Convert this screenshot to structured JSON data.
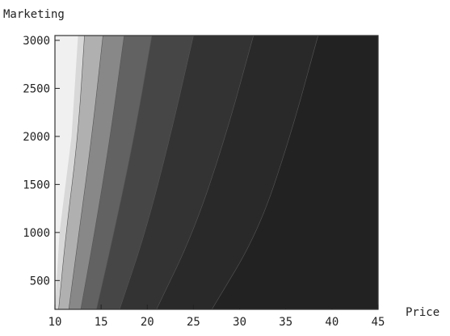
{
  "chart_data": {
    "type": "heatmap",
    "subtype": "contour",
    "xlabel": "Price",
    "ylabel": "Marketing",
    "xlim": [
      10,
      45
    ],
    "ylim": [
      200,
      3050
    ],
    "xticks": [
      10,
      15,
      20,
      25,
      30,
      35,
      40,
      45
    ],
    "yticks": [
      500,
      1000,
      1500,
      2000,
      2500,
      3000
    ],
    "xtick_labels": [
      "10",
      "15",
      "20",
      "25",
      "30",
      "35",
      "40",
      "45"
    ],
    "ytick_labels": [
      "500",
      "1000",
      "1500",
      "2000",
      "2500",
      "3000"
    ],
    "grid": false,
    "frame": true,
    "colormap": "grayscale",
    "contour_levels": [
      {
        "level": 1,
        "fill": "#d8d8d8",
        "boundary": [
          [
            10.4,
            200
          ],
          [
            11.2,
            1000
          ],
          [
            12.5,
            2000
          ],
          [
            13.2,
            3050
          ]
        ]
      },
      {
        "level": 2,
        "fill": "#b0b0b0",
        "boundary": [
          [
            11.5,
            200
          ],
          [
            12.6,
            1000
          ],
          [
            14.0,
            2000
          ],
          [
            15.2,
            3050
          ]
        ]
      },
      {
        "level": 3,
        "fill": "#888888",
        "boundary": [
          [
            12.8,
            200
          ],
          [
            14.3,
            1000
          ],
          [
            16.0,
            2000
          ],
          [
            17.5,
            3050
          ]
        ]
      },
      {
        "level": 4,
        "fill": "#626262",
        "boundary": [
          [
            14.5,
            200
          ],
          [
            16.4,
            1000
          ],
          [
            18.6,
            2000
          ],
          [
            20.5,
            3050
          ]
        ]
      },
      {
        "level": 5,
        "fill": "#464646",
        "boundary": [
          [
            17.0,
            200
          ],
          [
            19.8,
            1000
          ],
          [
            22.5,
            2000
          ],
          [
            25.0,
            3050
          ]
        ]
      },
      {
        "level": 6,
        "fill": "#333333",
        "boundary": [
          [
            21.0,
            200
          ],
          [
            25.0,
            1000
          ],
          [
            28.5,
            2000
          ],
          [
            31.5,
            3050
          ]
        ]
      },
      {
        "level": 7,
        "fill": "#292929",
        "boundary": [
          [
            27.0,
            200
          ],
          [
            32.0,
            1000
          ],
          [
            35.5,
            2000
          ],
          [
            38.5,
            3050
          ]
        ]
      }
    ],
    "base_fill": "#f0f0f0",
    "darkest_fill": "#222222",
    "frame_color": "#333333"
  }
}
